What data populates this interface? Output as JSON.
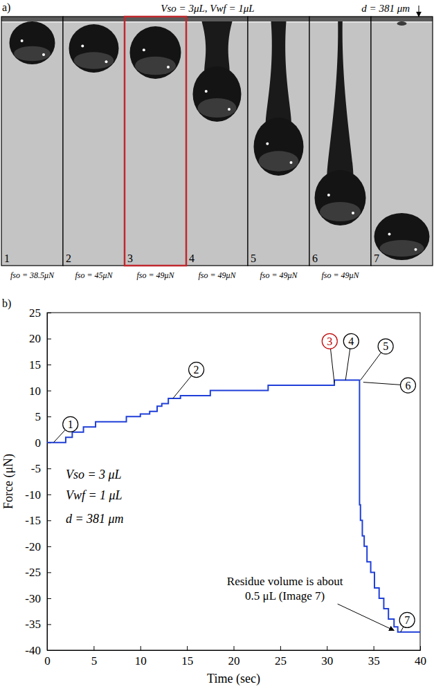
{
  "chart_data": [
    {
      "type": "image_strip",
      "panel_label": "a)",
      "title": "Vso = 3μL, Vwf = 1μL",
      "annotation": "d = 381 μm",
      "frames": [
        {
          "label": "1",
          "caption": "fso = 38.5μN"
        },
        {
          "label": "2",
          "caption": "fso = 45μN"
        },
        {
          "label": "3",
          "caption": "fso = 49μN",
          "color": "#c0282d"
        },
        {
          "label": "4",
          "caption": "fso = 49μN"
        },
        {
          "label": "5",
          "caption": "fso = 49μN"
        },
        {
          "label": "6",
          "caption": "fso = 49μN"
        },
        {
          "label": "7"
        }
      ]
    },
    {
      "type": "line",
      "panel_label": "b)",
      "x_label": "Time (sec)",
      "y_label": "Force (μN)",
      "xlim": [
        0,
        40
      ],
      "ylim": [
        -40,
        25
      ],
      "xticks": [
        0,
        5,
        10,
        15,
        20,
        25,
        30,
        35,
        40
      ],
      "yticks": [
        -40,
        -35,
        -30,
        -25,
        -20,
        -15,
        -10,
        -5,
        0,
        5,
        10,
        15,
        20,
        25
      ],
      "x": [
        0,
        2,
        2.7,
        3.9,
        5.2,
        8.5,
        10,
        11,
        11.8,
        12.3,
        13,
        14.3,
        17.5,
        23.7,
        30.8,
        33.5,
        33.6,
        33.8,
        34.0,
        34.3,
        34.7,
        35.1,
        35.6,
        36.1,
        36.6,
        37.2,
        37.6,
        40
      ],
      "series": [
        {
          "color": "#1f3fd8",
          "line_style": "step",
          "values": [
            0,
            1,
            2,
            3,
            4,
            5,
            5.5,
            6,
            7,
            7.5,
            8.5,
            9,
            10,
            11,
            12,
            -12,
            -15,
            -18,
            -20,
            -23,
            -25,
            -28,
            -30,
            -32,
            -34,
            -35.5,
            -36.5,
            -36.5
          ]
        }
      ],
      "markers": [
        {
          "label": "1",
          "x": 2.5,
          "y": 3.5,
          "target_x": 0.7,
          "target_y": 0
        },
        {
          "label": "2",
          "x": 16,
          "y": 14,
          "target_x": 13.5,
          "target_y": 8.5
        },
        {
          "label": "3",
          "x": 30.3,
          "y": 19.5,
          "target_x": 30.8,
          "target_y": 11.5,
          "color": "#c00000"
        },
        {
          "label": "4",
          "x": 32.6,
          "y": 19.5,
          "target_x": 32,
          "target_y": 12
        },
        {
          "label": "5",
          "x": 36.3,
          "y": 18.5,
          "target_x": 33.6,
          "target_y": 12
        },
        {
          "label": "6",
          "x": 38.7,
          "y": 11,
          "target_x": 33.9,
          "target_y": 11.6
        },
        {
          "label": "7",
          "x": 38.6,
          "y": -34.2,
          "target_x": 37.9,
          "target_y": -36.5
        }
      ],
      "notes": [
        {
          "text": "Vso = 3 μL",
          "x": 2,
          "y": -7
        },
        {
          "text": "Vwf = 1 μL",
          "x": 2,
          "y": -11
        },
        {
          "text": "d = 381 μm",
          "x": 2,
          "y": -15.5
        }
      ],
      "annotations": [
        {
          "lines": [
            "Residue volume is about",
            "0.5 μL (Image 7)"
          ],
          "x": 25.5,
          "y": -27.5,
          "target_x": 37.2,
          "target_y": -36.2
        }
      ]
    }
  ]
}
